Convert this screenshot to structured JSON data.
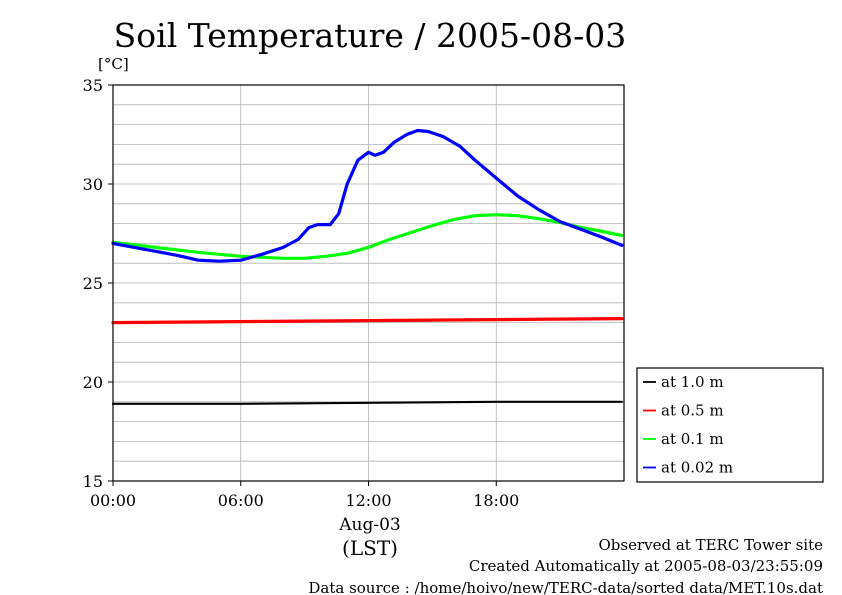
{
  "chart_data": {
    "type": "line",
    "title": "Soil Temperature / 2005-08-03",
    "ylabel_unit": "[°C]",
    "ylim": [
      15,
      35
    ],
    "yticks": [
      "15",
      "20",
      "25",
      "30",
      "35"
    ],
    "y_minor_step": 1,
    "xlim": [
      0,
      24
    ],
    "xticks": [
      {
        "value": 0,
        "label": "00:00"
      },
      {
        "value": 6,
        "label": "06:00"
      },
      {
        "value": 12,
        "label": "12:00"
      },
      {
        "value": 18,
        "label": "18:00"
      }
    ],
    "x_date_label": "Aug-03",
    "x_tz_label": "(LST)",
    "grid": true,
    "legend_position": "right",
    "series": [
      {
        "name": "at 1.0 m",
        "color": "#000000",
        "x": [
          0,
          6,
          12,
          18,
          23.9
        ],
        "y": [
          18.9,
          18.9,
          18.95,
          19.0,
          19.0
        ]
      },
      {
        "name": "at 0.5 m",
        "color": "#ff0000",
        "x": [
          0,
          6,
          12,
          18,
          23.9
        ],
        "y": [
          23.0,
          23.05,
          23.1,
          23.15,
          23.2
        ]
      },
      {
        "name": "at 0.1 m",
        "color": "#00ff00",
        "x": [
          0,
          2,
          4,
          6,
          8,
          9,
          10,
          11,
          12,
          13,
          14,
          15,
          16,
          17,
          18,
          19,
          20,
          21,
          22,
          23,
          23.9
        ],
        "y": [
          27.05,
          26.8,
          26.55,
          26.35,
          26.25,
          26.25,
          26.35,
          26.5,
          26.8,
          27.2,
          27.55,
          27.9,
          28.2,
          28.4,
          28.45,
          28.4,
          28.25,
          28.05,
          27.8,
          27.6,
          27.4
        ]
      },
      {
        "name": "at 0.02 m",
        "color": "#0000ff",
        "x": [
          0,
          1,
          2,
          3,
          4,
          5,
          6,
          7,
          8,
          8.7,
          9.2,
          9.6,
          10.2,
          10.6,
          11,
          11.5,
          12,
          12.3,
          12.7,
          13.2,
          13.8,
          14.3,
          14.8,
          15.5,
          16.3,
          17,
          18,
          19,
          20,
          21,
          22,
          23,
          23.9
        ],
        "y": [
          27.0,
          26.8,
          26.6,
          26.4,
          26.15,
          26.1,
          26.15,
          26.45,
          26.8,
          27.2,
          27.8,
          27.95,
          27.95,
          28.5,
          30.0,
          31.2,
          31.6,
          31.45,
          31.6,
          32.1,
          32.5,
          32.7,
          32.65,
          32.4,
          31.9,
          31.2,
          30.3,
          29.4,
          28.7,
          28.1,
          27.7,
          27.3,
          26.9
        ]
      }
    ]
  },
  "footer": {
    "line1": "Observed at TERC Tower site",
    "line2": "Created Automatically at 2005-08-03/23:55:09",
    "line3": "Data source : /home/hoivo/new/TERC-data/sorted  data/MET.10s.dat"
  }
}
